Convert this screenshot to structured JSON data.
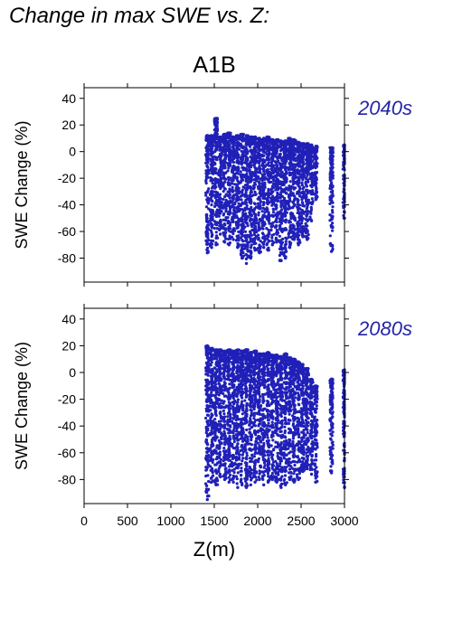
{
  "page": {
    "title": "Change in max SWE vs. Z:",
    "scenario": "A1B"
  },
  "colors": {
    "points": "#2020b8",
    "period_label": "#2424a8",
    "axis": "#000000"
  },
  "chart_data": [
    {
      "type": "scatter",
      "period": "2040s",
      "xlabel": "",
      "ylabel": "SWE Change (%)",
      "xlim": [
        0,
        3000
      ],
      "ylim": [
        -98,
        48
      ],
      "yticks": [
        40,
        20,
        0,
        -20,
        -40,
        -60,
        -80
      ],
      "xticks": [
        0,
        500,
        1000,
        1500,
        2000,
        2500,
        3000
      ],
      "grid": false,
      "series": [
        {
          "points_by_elevation": [
            {
              "z": 1420,
              "y_max": 12,
              "y_min": -76
            },
            {
              "z": 1470,
              "y_max": 12,
              "y_min": -72
            },
            {
              "z": 1520,
              "y_max": 25,
              "y_min": -70
            },
            {
              "z": 1570,
              "y_max": 11,
              "y_min": -62
            },
            {
              "z": 1620,
              "y_max": 13,
              "y_min": -68
            },
            {
              "z": 1670,
              "y_max": 14,
              "y_min": -70
            },
            {
              "z": 1720,
              "y_max": 11,
              "y_min": -66
            },
            {
              "z": 1770,
              "y_max": 12,
              "y_min": -72
            },
            {
              "z": 1820,
              "y_max": 13,
              "y_min": -80
            },
            {
              "z": 1870,
              "y_max": 12,
              "y_min": -84
            },
            {
              "z": 1920,
              "y_max": 11,
              "y_min": -80
            },
            {
              "z": 1970,
              "y_max": 11,
              "y_min": -74
            },
            {
              "z": 2020,
              "y_max": 10,
              "y_min": -76
            },
            {
              "z": 2070,
              "y_max": 10,
              "y_min": -72
            },
            {
              "z": 2120,
              "y_max": 11,
              "y_min": -74
            },
            {
              "z": 2170,
              "y_max": 9,
              "y_min": -70
            },
            {
              "z": 2220,
              "y_max": 9,
              "y_min": -68
            },
            {
              "z": 2270,
              "y_max": 8,
              "y_min": -82
            },
            {
              "z": 2320,
              "y_max": 8,
              "y_min": -80
            },
            {
              "z": 2370,
              "y_max": 10,
              "y_min": -72
            },
            {
              "z": 2420,
              "y_max": 9,
              "y_min": -66
            },
            {
              "z": 2470,
              "y_max": 7,
              "y_min": -70
            },
            {
              "z": 2520,
              "y_max": 6,
              "y_min": -64
            },
            {
              "z": 2570,
              "y_max": 6,
              "y_min": -66
            },
            {
              "z": 2620,
              "y_max": 5,
              "y_min": -52
            },
            {
              "z": 2670,
              "y_max": 4,
              "y_min": -36
            },
            {
              "z": 2850,
              "y_max": 3,
              "y_min": -75
            },
            {
              "z": 3000,
              "y_max": 5,
              "y_min": -50
            }
          ]
        }
      ]
    },
    {
      "type": "scatter",
      "period": "2080s",
      "xlabel": "Z(m)",
      "ylabel": "SWE Change (%)",
      "xlim": [
        0,
        3000
      ],
      "ylim": [
        -98,
        48
      ],
      "yticks": [
        40,
        20,
        0,
        -20,
        -40,
        -60,
        -80
      ],
      "xticks": [
        0,
        500,
        1000,
        1500,
        2000,
        2500,
        3000
      ],
      "xticklabels": [
        "0",
        "500",
        "1000",
        "1500",
        "2000",
        "2500",
        "3000"
      ],
      "grid": false,
      "series": [
        {
          "points_by_elevation": [
            {
              "z": 1420,
              "y_max": 20,
              "y_min": -95
            },
            {
              "z": 1470,
              "y_max": 18,
              "y_min": -82
            },
            {
              "z": 1520,
              "y_max": 17,
              "y_min": -84
            },
            {
              "z": 1570,
              "y_max": 17,
              "y_min": -78
            },
            {
              "z": 1620,
              "y_max": 16,
              "y_min": -80
            },
            {
              "z": 1670,
              "y_max": 17,
              "y_min": -82
            },
            {
              "z": 1720,
              "y_max": 16,
              "y_min": -82
            },
            {
              "z": 1770,
              "y_max": 17,
              "y_min": -86
            },
            {
              "z": 1820,
              "y_max": 16,
              "y_min": -84
            },
            {
              "z": 1870,
              "y_max": 17,
              "y_min": -86
            },
            {
              "z": 1920,
              "y_max": 15,
              "y_min": -84
            },
            {
              "z": 1970,
              "y_max": 16,
              "y_min": -82
            },
            {
              "z": 2020,
              "y_max": 14,
              "y_min": -80
            },
            {
              "z": 2070,
              "y_max": 14,
              "y_min": -84
            },
            {
              "z": 2120,
              "y_max": 15,
              "y_min": -82
            },
            {
              "z": 2170,
              "y_max": 13,
              "y_min": -80
            },
            {
              "z": 2220,
              "y_max": 13,
              "y_min": -82
            },
            {
              "z": 2270,
              "y_max": 12,
              "y_min": -86
            },
            {
              "z": 2320,
              "y_max": 14,
              "y_min": -84
            },
            {
              "z": 2370,
              "y_max": 11,
              "y_min": -80
            },
            {
              "z": 2420,
              "y_max": 10,
              "y_min": -82
            },
            {
              "z": 2470,
              "y_max": 8,
              "y_min": -80
            },
            {
              "z": 2520,
              "y_max": 6,
              "y_min": -74
            },
            {
              "z": 2570,
              "y_max": 3,
              "y_min": -72
            },
            {
              "z": 2620,
              "y_max": -5,
              "y_min": -76
            },
            {
              "z": 2670,
              "y_max": -10,
              "y_min": -82
            },
            {
              "z": 2850,
              "y_max": -5,
              "y_min": -75
            },
            {
              "z": 3000,
              "y_max": 2,
              "y_min": -86
            }
          ]
        }
      ]
    }
  ]
}
